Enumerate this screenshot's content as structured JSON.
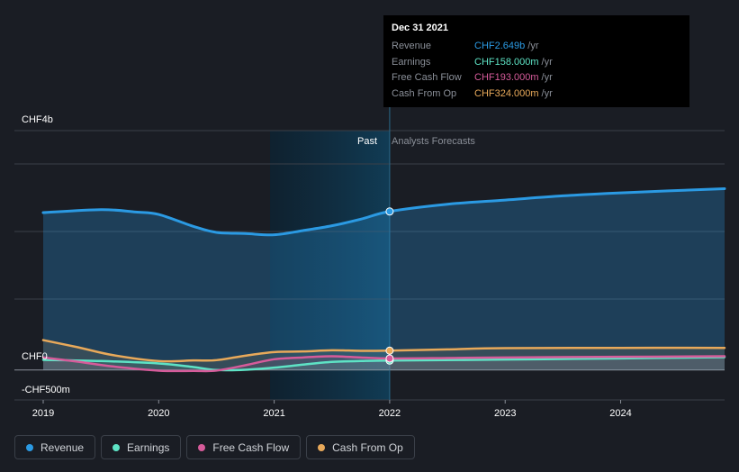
{
  "chart_data": {
    "type": "line",
    "y_axis": {
      "top_label": "CHF4b",
      "zero_label": "CHF0",
      "bottom_label": "-CHF500m",
      "ylim": [
        -500,
        4000
      ]
    },
    "x_ticks": [
      "2019",
      "2020",
      "2021",
      "2022",
      "2023",
      "2024"
    ],
    "xlim": [
      2019,
      2024.9
    ],
    "past_label": "Past",
    "forecast_label": "Analysts Forecasts",
    "divider_x": 2022,
    "grid": true,
    "series": [
      {
        "name": "Revenue",
        "color": "#2b9ae3",
        "points": [
          [
            2019,
            2630
          ],
          [
            2019.5,
            2680
          ],
          [
            2019.8,
            2640
          ],
          [
            2020,
            2600
          ],
          [
            2020.3,
            2400
          ],
          [
            2020.5,
            2300
          ],
          [
            2020.75,
            2280
          ],
          [
            2021,
            2260
          ],
          [
            2021.25,
            2330
          ],
          [
            2021.5,
            2410
          ],
          [
            2021.75,
            2520
          ],
          [
            2022,
            2649
          ],
          [
            2022.5,
            2770
          ],
          [
            2023,
            2840
          ],
          [
            2023.5,
            2910
          ],
          [
            2024,
            2960
          ],
          [
            2024.9,
            3030
          ]
        ]
      },
      {
        "name": "Earnings",
        "color": "#5ee3c5",
        "points": [
          [
            2019,
            170
          ],
          [
            2019.5,
            150
          ],
          [
            2020,
            110
          ],
          [
            2020.3,
            50
          ],
          [
            2020.5,
            0
          ],
          [
            2020.75,
            5
          ],
          [
            2021,
            40
          ],
          [
            2021.25,
            90
          ],
          [
            2021.5,
            135
          ],
          [
            2021.75,
            150
          ],
          [
            2022,
            158
          ],
          [
            2023,
            175
          ],
          [
            2024,
            195
          ],
          [
            2024.9,
            215
          ]
        ]
      },
      {
        "name": "Free Cash Flow",
        "color": "#d65b9a",
        "points": [
          [
            2019,
            210
          ],
          [
            2019.3,
            140
          ],
          [
            2019.6,
            60
          ],
          [
            2020,
            -10
          ],
          [
            2020.3,
            -15
          ],
          [
            2020.5,
            -10
          ],
          [
            2020.75,
            80
          ],
          [
            2021,
            180
          ],
          [
            2021.25,
            210
          ],
          [
            2021.5,
            230
          ],
          [
            2021.75,
            210
          ],
          [
            2022,
            193
          ],
          [
            2022.5,
            200
          ],
          [
            2023,
            210
          ],
          [
            2024,
            220
          ],
          [
            2024.9,
            230
          ]
        ]
      },
      {
        "name": "Cash From Op",
        "color": "#e8a95a",
        "points": [
          [
            2019,
            500
          ],
          [
            2019.3,
            380
          ],
          [
            2019.6,
            250
          ],
          [
            2020,
            150
          ],
          [
            2020.3,
            160
          ],
          [
            2020.5,
            165
          ],
          [
            2020.75,
            240
          ],
          [
            2021,
            300
          ],
          [
            2021.25,
            310
          ],
          [
            2021.5,
            330
          ],
          [
            2021.75,
            320
          ],
          [
            2022,
            324
          ],
          [
            2022.5,
            345
          ],
          [
            2023,
            365
          ],
          [
            2024,
            370
          ],
          [
            2024.9,
            370
          ]
        ]
      }
    ]
  },
  "tooltip": {
    "date": "Dec 31 2021",
    "rows": [
      {
        "name": "Revenue",
        "value": "CHF2.649b",
        "unit": "/yr",
        "color": "#2b9ae3"
      },
      {
        "name": "Earnings",
        "value": "CHF158.000m",
        "unit": "/yr",
        "color": "#5ee3c5"
      },
      {
        "name": "Free Cash Flow",
        "value": "CHF193.000m",
        "unit": "/yr",
        "color": "#d65b9a"
      },
      {
        "name": "Cash From Op",
        "value": "CHF324.000m",
        "unit": "/yr",
        "color": "#e8a95a"
      }
    ]
  },
  "legend": [
    {
      "label": "Revenue",
      "color": "#2b9ae3"
    },
    {
      "label": "Earnings",
      "color": "#5ee3c5"
    },
    {
      "label": "Free Cash Flow",
      "color": "#d65b9a"
    },
    {
      "label": "Cash From Op",
      "color": "#e8a95a"
    }
  ]
}
